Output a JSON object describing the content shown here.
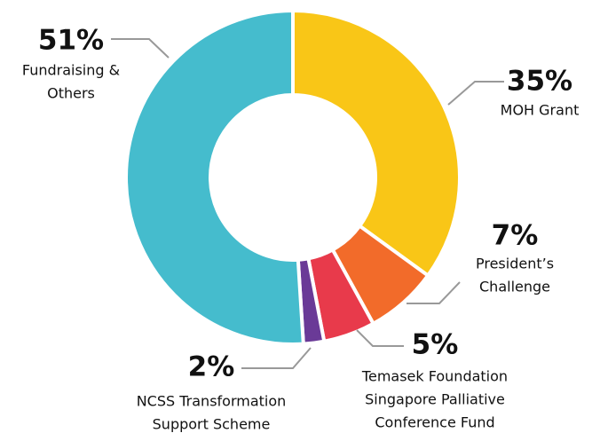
{
  "chart_data": {
    "type": "donut",
    "categories": [
      [
        "MOH Grant"
      ],
      [
        "President’s",
        "Challenge"
      ],
      [
        "Temasek Foundation",
        "Singapore Palliative",
        "Conference Fund"
      ],
      [
        "NCSS Transformation",
        "Support Scheme"
      ],
      [
        "Fundraising &",
        "Others"
      ]
    ],
    "values": [
      35,
      7,
      5,
      2,
      51
    ],
    "value_labels": [
      "35%",
      "7%",
      "5%",
      "2%",
      "51%"
    ],
    "colors": [
      "#f9c617",
      "#f26b2a",
      "#e83a4b",
      "#6a3a97",
      "#45bccd"
    ]
  }
}
